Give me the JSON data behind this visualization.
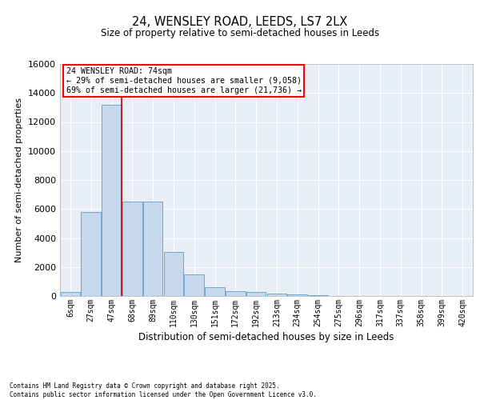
{
  "title": "24, WENSLEY ROAD, LEEDS, LS7 2LX",
  "subtitle": "Size of property relative to semi-detached houses in Leeds",
  "xlabel": "Distribution of semi-detached houses by size in Leeds",
  "ylabel": "Number of semi-detached properties",
  "bin_labels": [
    "6sqm",
    "27sqm",
    "47sqm",
    "68sqm",
    "89sqm",
    "110sqm",
    "130sqm",
    "151sqm",
    "172sqm",
    "192sqm",
    "213sqm",
    "234sqm",
    "254sqm",
    "275sqm",
    "296sqm",
    "317sqm",
    "337sqm",
    "358sqm",
    "399sqm",
    "420sqm"
  ],
  "bar_values": [
    300,
    5800,
    13200,
    6500,
    6500,
    3050,
    1500,
    600,
    320,
    250,
    150,
    100,
    80,
    0,
    0,
    0,
    0,
    0,
    0,
    0
  ],
  "bar_color": "#c5d8ee",
  "bar_edge_color": "#6fa8d0",
  "annotation_text_line1": "24 WENSLEY ROAD: 74sqm",
  "annotation_text_line2": "← 29% of semi-detached houses are smaller (9,058)",
  "annotation_text_line3": "69% of semi-detached houses are larger (21,736) →",
  "red_line_bin": 2,
  "ylim": [
    0,
    16000
  ],
  "yticks": [
    0,
    2000,
    4000,
    6000,
    8000,
    10000,
    12000,
    14000,
    16000
  ],
  "background_color": "#e8eef6",
  "grid_color": "#ffffff",
  "footer_line1": "Contains HM Land Registry data © Crown copyright and database right 2025.",
  "footer_line2": "Contains public sector information licensed under the Open Government Licence v3.0."
}
